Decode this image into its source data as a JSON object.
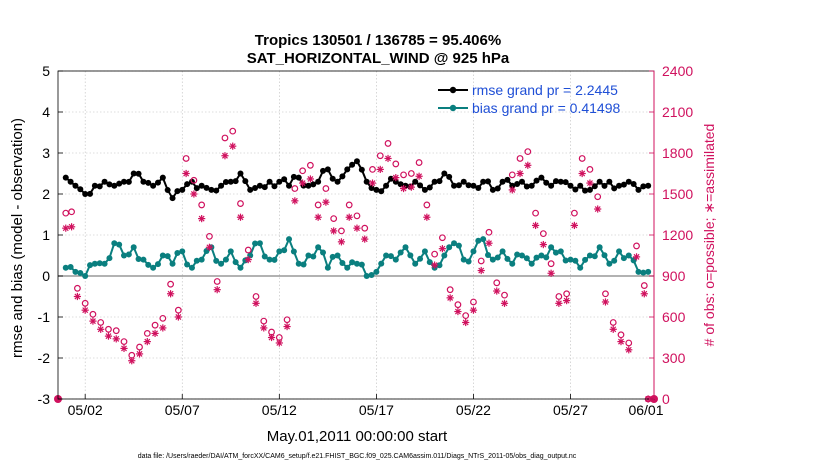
{
  "title_line1": "Tropics 130501 / 136785 = 95.406%",
  "title_line2": "SAT_HORIZONTAL_WIND @ 925 hPa",
  "footnote": "data file: /Users/raeder/DAI/ATM_forcXX/CAM6_setup/f.e21.FHIST_BGC.f09_025.CAM6assim.011/Diags_NTrS_2011-05/obs_diag_output.nc",
  "colors": {
    "rmse": "#000000",
    "bias": "#0a7f7f",
    "obs": "#d0115e",
    "zero_line": "#999999",
    "legend_text": "#1f4fd6"
  },
  "chart_data": {
    "type": "line",
    "title": "Tropics 130501 / 136785 = 95.406%",
    "subtitle": "SAT_HORIZONTAL_WIND @ 925 hPa",
    "xlabel": "May.01,2011 00:00:00 start",
    "ylabel": "rmse and bias (model - observation)",
    "y2label": "# of obs: o=possible; ∗=assimilated",
    "xlim": [
      0.6,
      31.3
    ],
    "ylim": [
      -3,
      5
    ],
    "y2lim": [
      0,
      2400
    ],
    "x_ticks": [
      2,
      7,
      12,
      17,
      22,
      27,
      32
    ],
    "x_tick_labels": [
      "05/02",
      "05/07",
      "05/12",
      "05/17",
      "05/22",
      "05/27",
      "06/01"
    ],
    "y_ticks": [
      -3,
      -2,
      -1,
      0,
      1,
      2,
      3,
      4,
      5
    ],
    "y2_ticks": [
      0,
      300,
      600,
      900,
      1200,
      1500,
      1800,
      2100,
      2400
    ],
    "legend": [
      {
        "label": "rmse grand pr = 2.2445",
        "series": "rmse"
      },
      {
        "label": "bias grand pr = 0.41498",
        "series": "bias"
      }
    ],
    "zero_line": 0,
    "series": [
      {
        "name": "rmse",
        "axis": "left",
        "color": "#000000",
        "marker": "filled-circle",
        "anchors": [
          [
            1,
            2.4
          ],
          [
            1.5,
            2.2
          ],
          [
            2,
            2.0
          ],
          [
            2.5,
            2.2
          ],
          [
            3,
            2.3
          ],
          [
            3.5,
            2.2
          ],
          [
            4,
            2.3
          ],
          [
            4.5,
            2.5
          ],
          [
            5,
            2.3
          ],
          [
            5.5,
            2.2
          ],
          [
            6,
            2.4
          ],
          [
            6.5,
            1.9
          ],
          [
            7,
            2.1
          ],
          [
            7.5,
            2.3
          ],
          [
            8,
            2.2
          ],
          [
            8.5,
            2.1
          ],
          [
            9,
            2.2
          ],
          [
            9.5,
            2.3
          ],
          [
            10,
            2.5
          ],
          [
            10.5,
            2.1
          ],
          [
            11,
            2.2
          ],
          [
            11.5,
            2.3
          ],
          [
            12,
            2.3
          ],
          [
            12.5,
            2.2
          ],
          [
            13,
            2.4
          ],
          [
            13.5,
            2.2
          ],
          [
            14,
            2.3
          ],
          [
            14.5,
            2.6
          ],
          [
            15,
            2.3
          ],
          [
            15.5,
            2.6
          ],
          [
            16,
            2.8
          ],
          [
            16.5,
            2.3
          ],
          [
            17,
            2.1
          ],
          [
            17.5,
            2.2
          ],
          [
            18,
            2.3
          ],
          [
            18.5,
            2.2
          ],
          [
            19,
            2.3
          ],
          [
            19.5,
            2.1
          ],
          [
            20,
            2.3
          ],
          [
            20.5,
            2.5
          ],
          [
            21,
            2.2
          ],
          [
            21.5,
            2.3
          ],
          [
            22,
            2.2
          ],
          [
            22.5,
            2.3
          ],
          [
            23,
            2.1
          ],
          [
            23.5,
            2.3
          ],
          [
            24,
            2.2
          ],
          [
            24.5,
            2.3
          ],
          [
            25,
            2.2
          ],
          [
            25.5,
            2.4
          ],
          [
            26,
            2.2
          ],
          [
            26.5,
            2.3
          ],
          [
            27,
            2.2
          ],
          [
            27.5,
            2.2
          ],
          [
            28,
            2.1
          ],
          [
            28.5,
            2.3
          ],
          [
            29,
            2.3
          ],
          [
            29.5,
            2.2
          ],
          [
            30,
            2.3
          ],
          [
            30.5,
            2.1
          ],
          [
            31,
            2.2
          ]
        ]
      },
      {
        "name": "bias",
        "axis": "left",
        "color": "#0a7f7f",
        "marker": "filled-circle",
        "anchors": [
          [
            1,
            0.2
          ],
          [
            1.5,
            0.1
          ],
          [
            2,
            0.0
          ],
          [
            2.5,
            0.3
          ],
          [
            3,
            0.3
          ],
          [
            3.5,
            0.8
          ],
          [
            4,
            0.5
          ],
          [
            4.5,
            0.7
          ],
          [
            5,
            0.4
          ],
          [
            5.5,
            0.2
          ],
          [
            6,
            0.5
          ],
          [
            6.5,
            0.3
          ],
          [
            7,
            0.6
          ],
          [
            7.5,
            0.2
          ],
          [
            8,
            0.4
          ],
          [
            8.5,
            0.7
          ],
          [
            9,
            0.3
          ],
          [
            9.5,
            0.6
          ],
          [
            10,
            0.2
          ],
          [
            10.5,
            0.5
          ],
          [
            11,
            0.8
          ],
          [
            11.5,
            0.4
          ],
          [
            12,
            0.6
          ],
          [
            12.5,
            0.9
          ],
          [
            13,
            0.3
          ],
          [
            13.5,
            0.5
          ],
          [
            14,
            0.7
          ],
          [
            14.5,
            0.2
          ],
          [
            15,
            0.5
          ],
          [
            15.5,
            0.2
          ],
          [
            16,
            0.3
          ],
          [
            16.5,
            0.0
          ],
          [
            17,
            0.1
          ],
          [
            17.5,
            0.5
          ],
          [
            18,
            0.4
          ],
          [
            18.5,
            0.7
          ],
          [
            19,
            0.3
          ],
          [
            19.5,
            0.6
          ],
          [
            20,
            0.2
          ],
          [
            20.5,
            0.5
          ],
          [
            21,
            0.8
          ],
          [
            21.5,
            0.4
          ],
          [
            22,
            0.6
          ],
          [
            22.5,
            0.9
          ],
          [
            23,
            0.4
          ],
          [
            23.5,
            0.6
          ],
          [
            24,
            0.3
          ],
          [
            24.5,
            0.5
          ],
          [
            25,
            0.3
          ],
          [
            25.5,
            0.5
          ],
          [
            26,
            0.7
          ],
          [
            26.5,
            0.6
          ],
          [
            27,
            0.4
          ],
          [
            27.5,
            0.2
          ],
          [
            28,
            0.5
          ],
          [
            28.5,
            0.7
          ],
          [
            29,
            0.3
          ],
          [
            29.5,
            0.6
          ],
          [
            30,
            0.5
          ],
          [
            30.5,
            0.1
          ],
          [
            31,
            0.1
          ]
        ]
      },
      {
        "name": "obs_possible",
        "axis": "right",
        "color": "#d0115e",
        "marker": "open-circle",
        "points": [
          [
            1,
            1360
          ],
          [
            1.3,
            1370
          ],
          [
            1.6,
            810
          ],
          [
            2,
            700
          ],
          [
            2.4,
            620
          ],
          [
            2.8,
            560
          ],
          [
            3.2,
            510
          ],
          [
            3.6,
            500
          ],
          [
            4,
            420
          ],
          [
            4.4,
            320
          ],
          [
            4.8,
            380
          ],
          [
            5.2,
            480
          ],
          [
            5.6,
            540
          ],
          [
            6,
            590
          ],
          [
            6.4,
            840
          ],
          [
            6.8,
            650
          ],
          [
            7.2,
            1760
          ],
          [
            7.6,
            1600
          ],
          [
            8,
            1420
          ],
          [
            8.4,
            1190
          ],
          [
            8.8,
            860
          ],
          [
            9.2,
            1910
          ],
          [
            9.6,
            1960
          ],
          [
            10,
            1430
          ],
          [
            10.4,
            1090
          ],
          [
            10.8,
            750
          ],
          [
            11.2,
            570
          ],
          [
            11.6,
            490
          ],
          [
            12,
            450
          ],
          [
            12.4,
            580
          ],
          [
            12.8,
            1540
          ],
          [
            13.2,
            1670
          ],
          [
            13.6,
            1710
          ],
          [
            14,
            1420
          ],
          [
            14.4,
            1540
          ],
          [
            14.8,
            1320
          ],
          [
            15.2,
            1230
          ],
          [
            15.6,
            1420
          ],
          [
            16,
            1340
          ],
          [
            16.4,
            1250
          ],
          [
            16.8,
            1680
          ],
          [
            17.2,
            1780
          ],
          [
            17.6,
            1870
          ],
          [
            18,
            1720
          ],
          [
            18.4,
            1640
          ],
          [
            18.8,
            1650
          ],
          [
            19.2,
            1730
          ],
          [
            19.6,
            1420
          ],
          [
            20,
            1060
          ],
          [
            20.4,
            1180
          ],
          [
            20.8,
            800
          ],
          [
            21.2,
            690
          ],
          [
            21.6,
            610
          ],
          [
            22,
            710
          ],
          [
            22.4,
            1010
          ],
          [
            22.8,
            1220
          ],
          [
            23.2,
            850
          ],
          [
            23.6,
            760
          ],
          [
            24,
            1640
          ],
          [
            24.4,
            1760
          ],
          [
            24.8,
            1810
          ],
          [
            25.2,
            1360
          ],
          [
            25.6,
            1210
          ],
          [
            26,
            990
          ],
          [
            26.4,
            750
          ],
          [
            26.8,
            770
          ],
          [
            27.2,
            1360
          ],
          [
            27.6,
            1760
          ],
          [
            28,
            1680
          ],
          [
            28.4,
            1480
          ],
          [
            28.8,
            770
          ],
          [
            29.2,
            560
          ],
          [
            29.6,
            470
          ],
          [
            30,
            410
          ],
          [
            30.4,
            1120
          ],
          [
            30.8,
            830
          ],
          [
            31,
            0
          ]
        ]
      },
      {
        "name": "obs_assimilated",
        "axis": "right",
        "color": "#d0115e",
        "marker": "asterisk",
        "points": [
          [
            1,
            1250
          ],
          [
            1.3,
            1260
          ],
          [
            1.6,
            750
          ],
          [
            2,
            650
          ],
          [
            2.4,
            570
          ],
          [
            2.8,
            510
          ],
          [
            3.2,
            460
          ],
          [
            3.6,
            440
          ],
          [
            4,
            370
          ],
          [
            4.4,
            280
          ],
          [
            4.8,
            330
          ],
          [
            5.2,
            420
          ],
          [
            5.6,
            480
          ],
          [
            6,
            520
          ],
          [
            6.4,
            770
          ],
          [
            6.8,
            600
          ],
          [
            7.2,
            1650
          ],
          [
            7.6,
            1500
          ],
          [
            8,
            1320
          ],
          [
            8.4,
            1110
          ],
          [
            8.8,
            800
          ],
          [
            9.2,
            1780
          ],
          [
            9.6,
            1850
          ],
          [
            10,
            1330
          ],
          [
            10.4,
            1020
          ],
          [
            10.8,
            700
          ],
          [
            11.2,
            520
          ],
          [
            11.6,
            450
          ],
          [
            12,
            410
          ],
          [
            12.4,
            530
          ],
          [
            12.8,
            1450
          ],
          [
            13.2,
            1580
          ],
          [
            13.6,
            1610
          ],
          [
            14,
            1330
          ],
          [
            14.4,
            1440
          ],
          [
            14.8,
            1230
          ],
          [
            15.2,
            1150
          ],
          [
            15.6,
            1330
          ],
          [
            16,
            1250
          ],
          [
            16.4,
            1170
          ],
          [
            16.8,
            1580
          ],
          [
            17.2,
            1680
          ],
          [
            17.6,
            1760
          ],
          [
            18,
            1620
          ],
          [
            18.4,
            1540
          ],
          [
            18.8,
            1550
          ],
          [
            19.2,
            1630
          ],
          [
            19.6,
            1330
          ],
          [
            20,
            980
          ],
          [
            20.4,
            1100
          ],
          [
            20.8,
            740
          ],
          [
            21.2,
            640
          ],
          [
            21.6,
            560
          ],
          [
            22,
            650
          ],
          [
            22.4,
            940
          ],
          [
            22.8,
            1140
          ],
          [
            23.2,
            790
          ],
          [
            23.6,
            700
          ],
          [
            24,
            1530
          ],
          [
            24.4,
            1650
          ],
          [
            24.8,
            1710
          ],
          [
            25.2,
            1270
          ],
          [
            25.6,
            1130
          ],
          [
            26,
            920
          ],
          [
            26.4,
            700
          ],
          [
            26.8,
            720
          ],
          [
            27.2,
            1270
          ],
          [
            27.6,
            1650
          ],
          [
            28,
            1580
          ],
          [
            28.4,
            1390
          ],
          [
            28.8,
            710
          ],
          [
            29.2,
            510
          ],
          [
            29.6,
            420
          ],
          [
            30,
            360
          ],
          [
            30.4,
            1040
          ],
          [
            30.8,
            770
          ],
          [
            31,
            0
          ]
        ]
      }
    ]
  }
}
